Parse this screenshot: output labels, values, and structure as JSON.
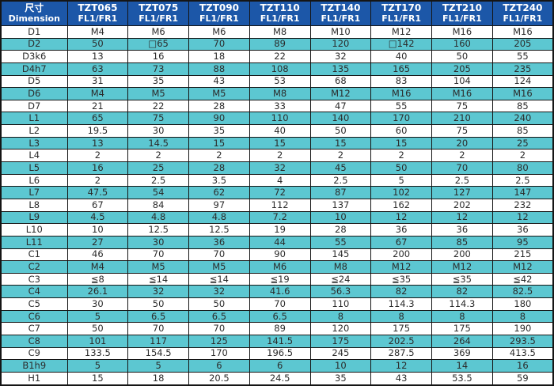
{
  "table": {
    "header": {
      "dim_zh": "尺寸",
      "dim_en": "Dimension"
    },
    "columns": [
      {
        "model": "TZT065",
        "sub": "FL1/FR1"
      },
      {
        "model": "TZT075",
        "sub": "FL1/FR1"
      },
      {
        "model": "TZT090",
        "sub": "FL1/FR1"
      },
      {
        "model": "TZT110",
        "sub": "FL1/FR1"
      },
      {
        "model": "TZT140",
        "sub": "FL1/FR1"
      },
      {
        "model": "TZT170",
        "sub": "FL1/FR1"
      },
      {
        "model": "TZT210",
        "sub": "FL1/FR1"
      },
      {
        "model": "TZT240",
        "sub": "FL1/FR1"
      }
    ],
    "rows": [
      {
        "label": "D1",
        "values": [
          "M4",
          "M6",
          "M6",
          "M8",
          "M10",
          "M12",
          "M16",
          "M16"
        ]
      },
      {
        "label": "D2",
        "values": [
          "50",
          "□65",
          "70",
          "89",
          "120",
          "□142",
          "160",
          "205"
        ]
      },
      {
        "label": "D3k6",
        "values": [
          "13",
          "16",
          "18",
          "22",
          "32",
          "40",
          "50",
          "55"
        ]
      },
      {
        "label": "D4h7",
        "values": [
          "63",
          "73",
          "88",
          "108",
          "135",
          "165",
          "205",
          "235"
        ]
      },
      {
        "label": "D5",
        "values": [
          "31",
          "35",
          "43",
          "53",
          "68",
          "83",
          "104",
          "124"
        ]
      },
      {
        "label": "D6",
        "values": [
          "M4",
          "M5",
          "M5",
          "M8",
          "M12",
          "M16",
          "M16",
          "M16"
        ]
      },
      {
        "label": "D7",
        "values": [
          "21",
          "22",
          "28",
          "33",
          "47",
          "55",
          "75",
          "85"
        ]
      },
      {
        "label": "L1",
        "values": [
          "65",
          "75",
          "90",
          "110",
          "140",
          "170",
          "210",
          "240"
        ]
      },
      {
        "label": "L2",
        "values": [
          "19.5",
          "30",
          "35",
          "40",
          "50",
          "60",
          "75",
          "85"
        ]
      },
      {
        "label": "L3",
        "values": [
          "13",
          "14.5",
          "15",
          "15",
          "15",
          "15",
          "20",
          "25"
        ]
      },
      {
        "label": "L4",
        "values": [
          "2",
          "2",
          "2",
          "2",
          "2",
          "2",
          "2",
          "2"
        ]
      },
      {
        "label": "L5",
        "values": [
          "16",
          "25",
          "28",
          "32",
          "45",
          "50",
          "70",
          "80"
        ]
      },
      {
        "label": "L6",
        "values": [
          "2",
          "2.5",
          "3.5",
          "4",
          "2.5",
          "5",
          "2.5",
          "2.5"
        ]
      },
      {
        "label": "L7",
        "values": [
          "47.5",
          "54",
          "62",
          "72",
          "87",
          "102",
          "127",
          "147"
        ]
      },
      {
        "label": "L8",
        "values": [
          "67",
          "84",
          "97",
          "112",
          "137",
          "162",
          "202",
          "232"
        ]
      },
      {
        "label": "L9",
        "values": [
          "4.5",
          "4.8",
          "4.8",
          "7.2",
          "10",
          "12",
          "12",
          "12"
        ]
      },
      {
        "label": "L10",
        "values": [
          "10",
          "12.5",
          "12.5",
          "19",
          "28",
          "36",
          "36",
          "36"
        ]
      },
      {
        "label": "L11",
        "values": [
          "27",
          "30",
          "36",
          "44",
          "55",
          "67",
          "85",
          "95"
        ]
      },
      {
        "label": "C1",
        "values": [
          "46",
          "70",
          "70",
          "90",
          "145",
          "200",
          "200",
          "215"
        ]
      },
      {
        "label": "C2",
        "values": [
          "M4",
          "M5",
          "M5",
          "M6",
          "M8",
          "M12",
          "M12",
          "M12"
        ]
      },
      {
        "label": "C3",
        "values": [
          "≦8",
          "≦14",
          "≦14",
          "≦19",
          "≦24",
          "≦35",
          "≦35",
          "≦42"
        ]
      },
      {
        "label": "C4",
        "values": [
          "26.1",
          "32",
          "32",
          "41.6",
          "56.3",
          "82",
          "82",
          "82.5"
        ]
      },
      {
        "label": "C5",
        "values": [
          "30",
          "50",
          "50",
          "70",
          "110",
          "114.3",
          "114.3",
          "180"
        ]
      },
      {
        "label": "C6",
        "values": [
          "5",
          "6.5",
          "6.5",
          "6.5",
          "8",
          "8",
          "8",
          "8"
        ]
      },
      {
        "label": "C7",
        "values": [
          "50",
          "70",
          "70",
          "89",
          "120",
          "175",
          "175",
          "190"
        ]
      },
      {
        "label": "C8",
        "values": [
          "101",
          "117",
          "125",
          "141.5",
          "175",
          "202.5",
          "264",
          "293.5"
        ]
      },
      {
        "label": "C9",
        "values": [
          "133.5",
          "154.5",
          "170",
          "196.5",
          "245",
          "287.5",
          "369",
          "413.5"
        ]
      },
      {
        "label": "B1h9",
        "values": [
          "5",
          "5",
          "6",
          "6",
          "10",
          "12",
          "14",
          "16"
        ]
      },
      {
        "label": "H1",
        "values": [
          "15",
          "18",
          "20.5",
          "24.5",
          "35",
          "43",
          "53.5",
          "59"
        ]
      }
    ]
  },
  "colors": {
    "header_bg": "#1c57a8",
    "header_text": "#ffffff",
    "row_bg": "#ffffff",
    "row_alt_bg": "#5cc7d1",
    "border": "#151515",
    "cell_text": "#2b2b2b"
  }
}
